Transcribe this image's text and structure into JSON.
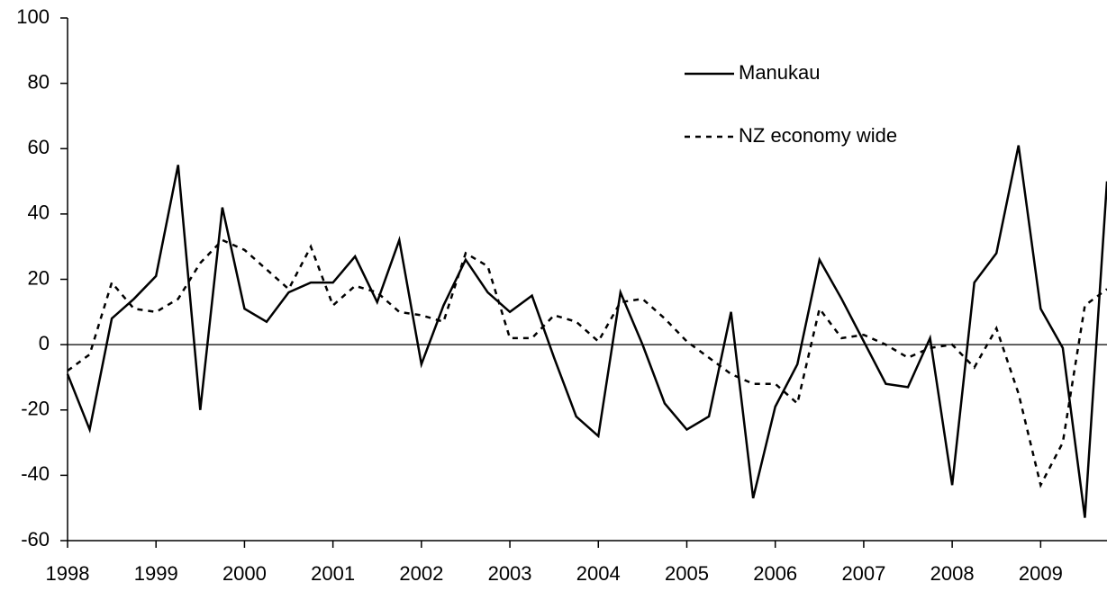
{
  "chart_data": {
    "type": "line",
    "x": [
      1998,
      1998.25,
      1998.5,
      1998.75,
      1999,
      1999.25,
      1999.5,
      1999.75,
      2000,
      2000.25,
      2000.5,
      2000.75,
      2001,
      2001.25,
      2001.5,
      2001.75,
      2002,
      2002.25,
      2002.5,
      2002.75,
      2003,
      2003.25,
      2003.5,
      2003.75,
      2004,
      2004.25,
      2004.5,
      2004.75,
      2005,
      2005.25,
      2005.5,
      2005.75,
      2006,
      2006.25,
      2006.5,
      2006.75,
      2007,
      2007.25,
      2007.5,
      2007.75,
      2008,
      2008.25,
      2008.5,
      2008.75,
      2009,
      2009.25,
      2009.5,
      2009.75
    ],
    "series": [
      {
        "name": "Manukau",
        "color": "#000000",
        "dash": "solid",
        "values": [
          -9,
          -26,
          8,
          14,
          21,
          55,
          -20,
          42,
          11,
          7,
          16,
          19,
          19,
          27,
          13,
          32,
          -6,
          12,
          26,
          16,
          10,
          15,
          -4,
          -22,
          -28,
          16,
          0,
          -18,
          -26,
          -22,
          10,
          -47,
          -19,
          -6,
          26,
          14,
          1,
          -12,
          -13,
          2,
          -43,
          19,
          28,
          61,
          11,
          -1,
          -53,
          50
        ]
      },
      {
        "name": "NZ economy wide",
        "color": "#000000",
        "dash": "dotted",
        "values": [
          -8,
          -3,
          19,
          11,
          10,
          14,
          25,
          32,
          29,
          23,
          17,
          30,
          12,
          18,
          16,
          10,
          9,
          7,
          28,
          24,
          2,
          2,
          9,
          7,
          1,
          13,
          14,
          8,
          1,
          -4,
          -9,
          -12,
          -12,
          -18,
          11,
          2,
          3,
          0,
          -4,
          -1,
          0,
          -7,
          5,
          -15,
          -43,
          -30,
          12,
          17
        ]
      }
    ],
    "xlim": [
      1998,
      2009.75
    ],
    "xticks": [
      1998,
      1999,
      2000,
      2001,
      2002,
      2003,
      2004,
      2005,
      2006,
      2007,
      2008,
      2009
    ],
    "ylim": [
      -60,
      100
    ],
    "yticks": [
      -60,
      -40,
      -20,
      0,
      20,
      40,
      60,
      80,
      100
    ],
    "legend": "upper right"
  }
}
